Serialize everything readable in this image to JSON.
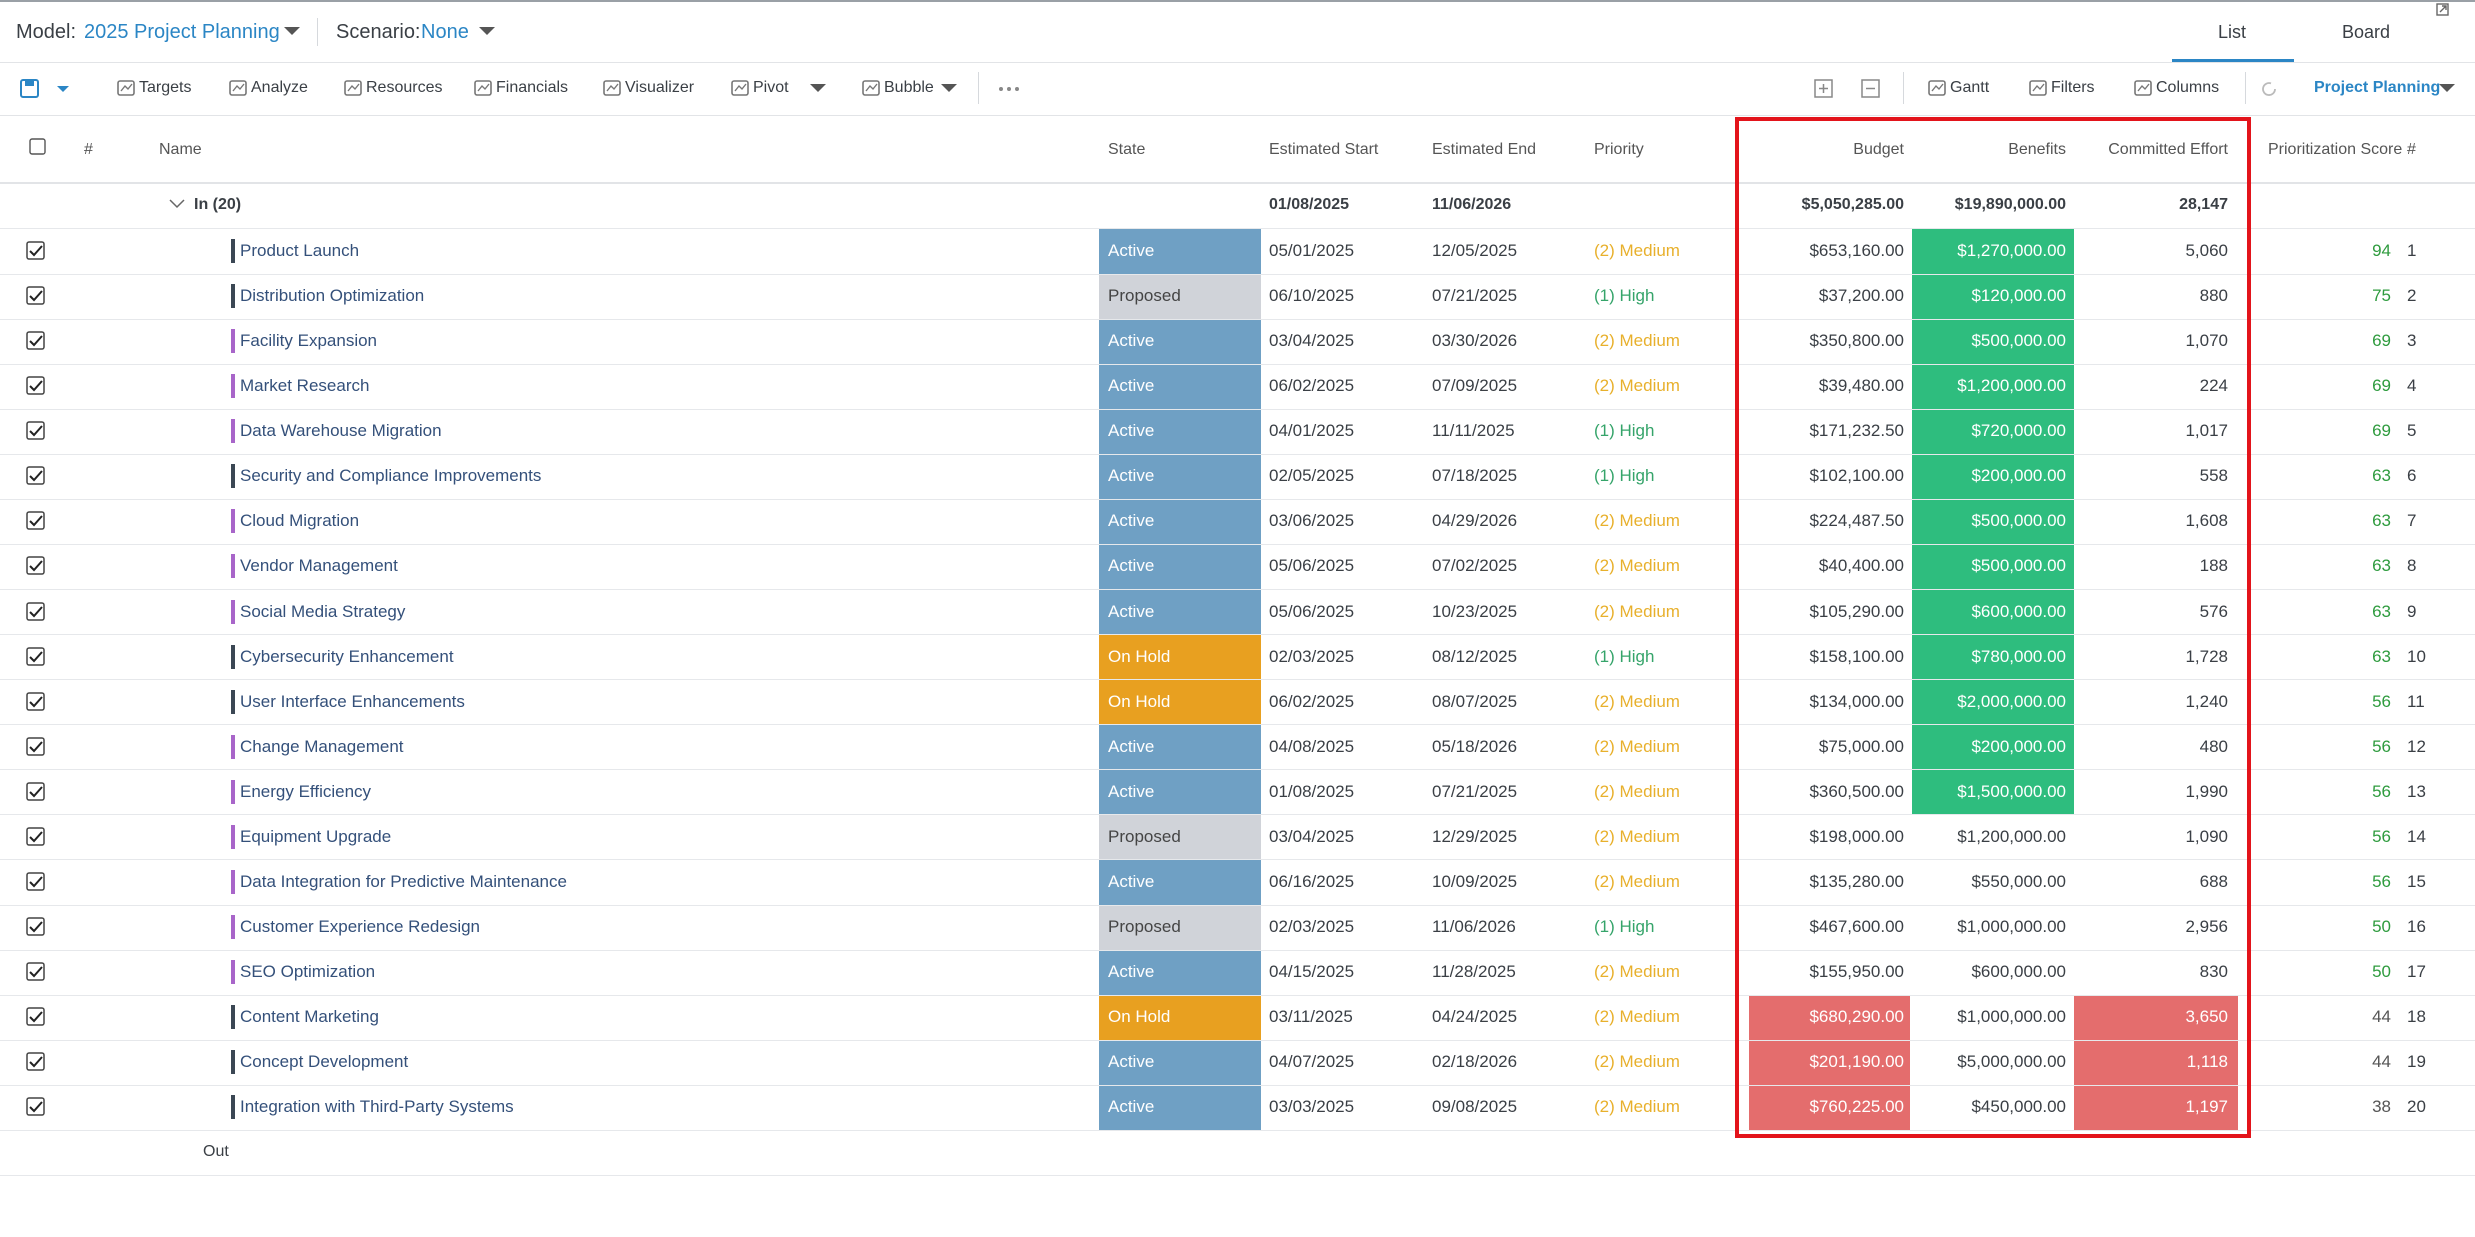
{
  "header": {
    "model_label": "Model:",
    "model": "2025 Project Planning",
    "scenario_label": "Scenario:",
    "scenario": "None",
    "tabs": [
      "List",
      "Board"
    ]
  },
  "toolbar": {
    "items": [
      "Targets",
      "Analyze",
      "Resources",
      "Financials",
      "Visualizer",
      "Pivot",
      "Bubble"
    ],
    "right_items": [
      "Gantt",
      "Filters",
      "Columns"
    ],
    "view": "Project Planning"
  },
  "table": {
    "columns": [
      "#",
      "Name",
      "State",
      "Estimated Start",
      "Estimated End",
      "Priority",
      "Budget",
      "Benefits",
      "Committed Effort",
      "Prioritization Score",
      "#"
    ],
    "group": {
      "label": "In (20)",
      "start": "01/08/2025",
      "end": "11/06/2026",
      "budget": "$5,050,285.00",
      "benefits": "$19,890,000.00",
      "effort": "28,147"
    },
    "out_label": "Out",
    "state_colors": {
      "Active": {
        "fill": "#6fa0c4",
        "text": "#ffffff"
      },
      "Proposed": {
        "fill": "#d0d3d9",
        "text": "#444444"
      },
      "On Hold": {
        "fill": "#e8a020",
        "text": "#ffffff"
      }
    },
    "priority_colors": {
      "(2) Medium": "#e8b02c",
      "(1) High": "#35a46a"
    },
    "rows": [
      {
        "name": "Product Launch",
        "marker": "#3b4754",
        "state": "Active",
        "start": "05/01/2025",
        "end": "12/05/2025",
        "priority": "(2) Medium",
        "budget": "$653,160.00",
        "benefits": "$1,270,000.00",
        "benefits_fill": "#2ebd7e",
        "effort": "5,060",
        "score": 94,
        "score_color": "#2e9b3e",
        "rank": 1
      },
      {
        "name": "Distribution Optimization",
        "marker": "#3b4754",
        "state": "Proposed",
        "start": "06/10/2025",
        "end": "07/21/2025",
        "priority": "(1) High",
        "budget": "$37,200.00",
        "benefits": "$120,000.00",
        "benefits_fill": "#2ebd7e",
        "effort": "880",
        "score": 75,
        "score_color": "#2e9b3e",
        "rank": 2
      },
      {
        "name": "Facility Expansion",
        "marker": "#a865c9",
        "state": "Active",
        "start": "03/04/2025",
        "end": "03/30/2026",
        "priority": "(2) Medium",
        "budget": "$350,800.00",
        "benefits": "$500,000.00",
        "benefits_fill": "#2ebd7e",
        "effort": "1,070",
        "score": 69,
        "score_color": "#2e9b3e",
        "rank": 3
      },
      {
        "name": "Market Research",
        "marker": "#a865c9",
        "state": "Active",
        "start": "06/02/2025",
        "end": "07/09/2025",
        "priority": "(2) Medium",
        "budget": "$39,480.00",
        "benefits": "$1,200,000.00",
        "benefits_fill": "#2ebd7e",
        "effort": "224",
        "score": 69,
        "score_color": "#2e9b3e",
        "rank": 4
      },
      {
        "name": "Data Warehouse Migration",
        "marker": "#a865c9",
        "state": "Active",
        "start": "04/01/2025",
        "end": "11/11/2025",
        "priority": "(1) High",
        "budget": "$171,232.50",
        "benefits": "$720,000.00",
        "benefits_fill": "#2ebd7e",
        "effort": "1,017",
        "score": 69,
        "score_color": "#2e9b3e",
        "rank": 5
      },
      {
        "name": "Security and Compliance Improvements",
        "marker": "#3b4754",
        "state": "Active",
        "start": "02/05/2025",
        "end": "07/18/2025",
        "priority": "(1) High",
        "budget": "$102,100.00",
        "benefits": "$200,000.00",
        "benefits_fill": "#2ebd7e",
        "effort": "558",
        "score": 63,
        "score_color": "#2e9b3e",
        "rank": 6
      },
      {
        "name": "Cloud Migration",
        "marker": "#a865c9",
        "state": "Active",
        "start": "03/06/2025",
        "end": "04/29/2026",
        "priority": "(2) Medium",
        "budget": "$224,487.50",
        "benefits": "$500,000.00",
        "benefits_fill": "#2ebd7e",
        "effort": "1,608",
        "score": 63,
        "score_color": "#2e9b3e",
        "rank": 7
      },
      {
        "name": "Vendor Management",
        "marker": "#a865c9",
        "state": "Active",
        "start": "05/06/2025",
        "end": "07/02/2025",
        "priority": "(2) Medium",
        "budget": "$40,400.00",
        "benefits": "$500,000.00",
        "benefits_fill": "#2ebd7e",
        "effort": "188",
        "score": 63,
        "score_color": "#2e9b3e",
        "rank": 8
      },
      {
        "name": "Social Media Strategy",
        "marker": "#a865c9",
        "state": "Active",
        "start": "05/06/2025",
        "end": "10/23/2025",
        "priority": "(2) Medium",
        "budget": "$105,290.00",
        "benefits": "$600,000.00",
        "benefits_fill": "#2ebd7e",
        "effort": "576",
        "score": 63,
        "score_color": "#2e9b3e",
        "rank": 9
      },
      {
        "name": "Cybersecurity Enhancement",
        "marker": "#3b4754",
        "state": "On Hold",
        "start": "02/03/2025",
        "end": "08/12/2025",
        "priority": "(1) High",
        "budget": "$158,100.00",
        "benefits": "$780,000.00",
        "benefits_fill": "#2ebd7e",
        "effort": "1,728",
        "score": 63,
        "score_color": "#2e9b3e",
        "rank": 10
      },
      {
        "name": "User Interface Enhancements",
        "marker": "#3b4754",
        "state": "On Hold",
        "start": "06/02/2025",
        "end": "08/07/2025",
        "priority": "(2) Medium",
        "budget": "$134,000.00",
        "benefits": "$2,000,000.00",
        "benefits_fill": "#2ebd7e",
        "effort": "1,240",
        "score": 56,
        "score_color": "#2e9b3e",
        "rank": 11
      },
      {
        "name": "Change Management",
        "marker": "#a865c9",
        "state": "Active",
        "start": "04/08/2025",
        "end": "05/18/2026",
        "priority": "(2) Medium",
        "budget": "$75,000.00",
        "benefits": "$200,000.00",
        "benefits_fill": "#2ebd7e",
        "effort": "480",
        "score": 56,
        "score_color": "#2e9b3e",
        "rank": 12
      },
      {
        "name": "Energy Efficiency",
        "marker": "#a865c9",
        "state": "Active",
        "start": "01/08/2025",
        "end": "07/21/2025",
        "priority": "(2) Medium",
        "budget": "$360,500.00",
        "benefits": "$1,500,000.00",
        "benefits_fill": "#2ebd7e",
        "effort": "1,990",
        "score": 56,
        "score_color": "#2e9b3e",
        "rank": 13
      },
      {
        "name": "Equipment Upgrade",
        "marker": "#a865c9",
        "state": "Proposed",
        "start": "03/04/2025",
        "end": "12/29/2025",
        "priority": "(2) Medium",
        "budget": "$198,000.00",
        "benefits": "$1,200,000.00",
        "effort": "1,090",
        "score": 56,
        "score_color": "#2e9b3e",
        "rank": 14
      },
      {
        "name": "Data Integration for Predictive Maintenance",
        "marker": "#a865c9",
        "state": "Active",
        "start": "06/16/2025",
        "end": "10/09/2025",
        "priority": "(2) Medium",
        "budget": "$135,280.00",
        "benefits": "$550,000.00",
        "effort": "688",
        "score": 56,
        "score_color": "#2e9b3e",
        "rank": 15
      },
      {
        "name": "Customer Experience Redesign",
        "marker": "#a865c9",
        "state": "Proposed",
        "start": "02/03/2025",
        "end": "11/06/2026",
        "priority": "(1) High",
        "budget": "$467,600.00",
        "benefits": "$1,000,000.00",
        "effort": "2,956",
        "score": 50,
        "score_color": "#2e9b3e",
        "rank": 16
      },
      {
        "name": "SEO Optimization",
        "marker": "#a865c9",
        "state": "Active",
        "start": "04/15/2025",
        "end": "11/28/2025",
        "priority": "(2) Medium",
        "budget": "$155,950.00",
        "benefits": "$600,000.00",
        "effort": "830",
        "score": 50,
        "score_color": "#2e9b3e",
        "rank": 17
      },
      {
        "name": "Content Marketing",
        "marker": "#3b4754",
        "state": "On Hold",
        "start": "03/11/2025",
        "end": "04/24/2025",
        "priority": "(2) Medium",
        "budget": "$680,290.00",
        "budget_fill": "#e46d6d",
        "benefits": "$1,000,000.00",
        "effort": "3,650",
        "effort_fill": "#e46d6d",
        "score": 44,
        "score_color": "#555555",
        "rank": 18
      },
      {
        "name": "Concept Development",
        "marker": "#3b4754",
        "state": "Active",
        "start": "04/07/2025",
        "end": "02/18/2026",
        "priority": "(2) Medium",
        "budget": "$201,190.00",
        "budget_fill": "#e46d6d",
        "benefits": "$5,000,000.00",
        "effort": "1,118",
        "effort_fill": "#e46d6d",
        "score": 44,
        "score_color": "#555555",
        "rank": 19
      },
      {
        "name": "Integration with Third-Party Systems",
        "marker": "#3b4754",
        "state": "Active",
        "start": "03/03/2025",
        "end": "09/08/2025",
        "priority": "(2) Medium",
        "budget": "$760,225.00",
        "budget_fill": "#e46d6d",
        "benefits": "$450,000.00",
        "effort": "1,197",
        "effort_fill": "#e46d6d",
        "score": 38,
        "score_color": "#555555",
        "rank": 20
      }
    ]
  }
}
